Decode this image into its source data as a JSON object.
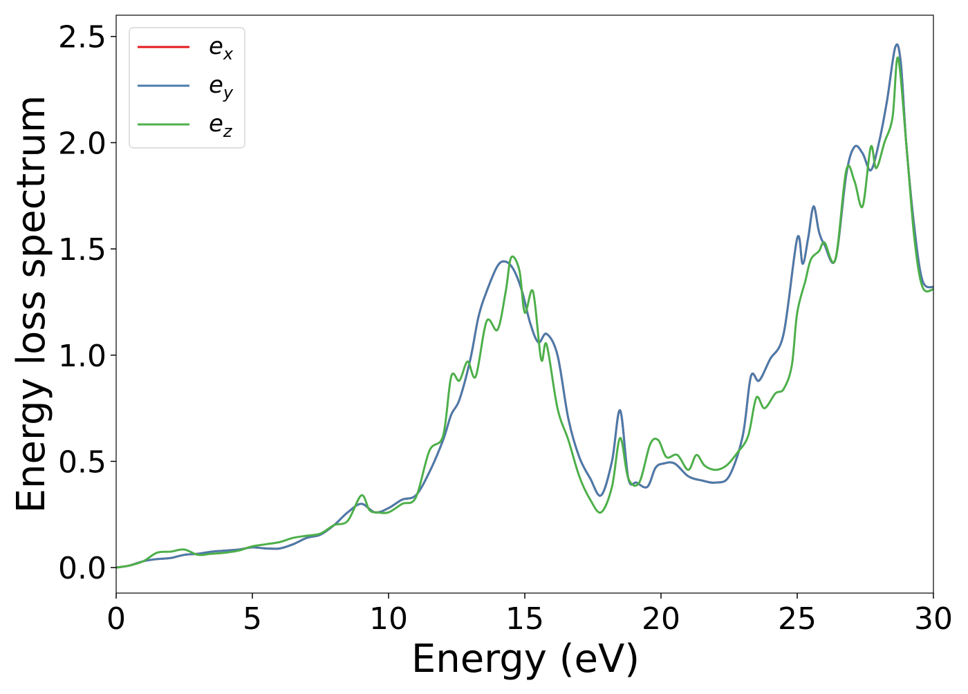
{
  "chart_data": {
    "type": "line",
    "title": "",
    "xlabel": "Energy (eV)",
    "ylabel": "Energy loss spectrum",
    "xlim": [
      0,
      30
    ],
    "ylim": [
      -0.12,
      2.6
    ],
    "xticks": [
      0,
      5,
      10,
      15,
      20,
      25,
      30
    ],
    "xtick_labels": [
      "0",
      "5",
      "10",
      "15",
      "20",
      "25",
      "30"
    ],
    "yticks": [
      0.0,
      0.5,
      1.0,
      1.5,
      2.0,
      2.5
    ],
    "ytick_labels": [
      "0.0",
      "0.5",
      "1.0",
      "1.5",
      "2.0",
      "2.5"
    ],
    "grid": false,
    "legend_position": "top-left",
    "series": [
      {
        "name": "e_x",
        "legend_base": "e",
        "legend_sub": "x",
        "color": "#e41a1c",
        "x": [
          0,
          0.5,
          1,
          1.5,
          2,
          2.5,
          3,
          3.5,
          4,
          4.5,
          5,
          5.5,
          6,
          6.5,
          7,
          7.5,
          8,
          8.5,
          9,
          9.5,
          10,
          10.5,
          11,
          11.5,
          12,
          12.3,
          12.6,
          13,
          13.3,
          13.6,
          14,
          14.3,
          14.6,
          14.9,
          15.2,
          15.5,
          15.8,
          16.2,
          16.6,
          17,
          17.4,
          17.8,
          18.2,
          18.5,
          18.8,
          19.1,
          19.5,
          19.8,
          20.1,
          20.5,
          21,
          21.5,
          22,
          22.5,
          23,
          23.3,
          23.6,
          24,
          24.5,
          25,
          25.2,
          25.4,
          25.6,
          25.8,
          26,
          26.4,
          26.8,
          27.1,
          27.4,
          27.7,
          28,
          28.3,
          28.6,
          28.8,
          29,
          29.3,
          29.6,
          30
        ],
        "y": [
          0,
          0.01,
          0.03,
          0.04,
          0.045,
          0.06,
          0.065,
          0.075,
          0.08,
          0.085,
          0.095,
          0.09,
          0.09,
          0.11,
          0.14,
          0.155,
          0.2,
          0.26,
          0.3,
          0.26,
          0.28,
          0.32,
          0.34,
          0.45,
          0.6,
          0.72,
          0.79,
          0.98,
          1.18,
          1.3,
          1.42,
          1.44,
          1.4,
          1.3,
          1.15,
          1.06,
          1.1,
          1.0,
          0.7,
          0.52,
          0.42,
          0.34,
          0.5,
          0.74,
          0.42,
          0.4,
          0.38,
          0.47,
          0.49,
          0.49,
          0.43,
          0.41,
          0.4,
          0.43,
          0.62,
          0.9,
          0.88,
          0.98,
          1.1,
          1.55,
          1.43,
          1.55,
          1.7,
          1.58,
          1.52,
          1.45,
          1.85,
          1.98,
          1.95,
          1.87,
          2.0,
          2.2,
          2.45,
          2.38,
          2.0,
          1.6,
          1.35,
          1.32
        ]
      },
      {
        "name": "e_y",
        "legend_base": "e",
        "legend_sub": "y",
        "color": "#4a7bab",
        "x": [
          0,
          0.5,
          1,
          1.5,
          2,
          2.5,
          3,
          3.5,
          4,
          4.5,
          5,
          5.5,
          6,
          6.5,
          7,
          7.5,
          8,
          8.5,
          9,
          9.5,
          10,
          10.5,
          11,
          11.5,
          12,
          12.3,
          12.6,
          13,
          13.3,
          13.6,
          14,
          14.3,
          14.6,
          14.9,
          15.2,
          15.5,
          15.8,
          16.2,
          16.6,
          17,
          17.4,
          17.8,
          18.2,
          18.5,
          18.8,
          19.1,
          19.5,
          19.8,
          20.1,
          20.5,
          21,
          21.5,
          22,
          22.5,
          23,
          23.3,
          23.6,
          24,
          24.5,
          25,
          25.2,
          25.4,
          25.6,
          25.8,
          26,
          26.4,
          26.8,
          27.1,
          27.4,
          27.7,
          28,
          28.3,
          28.6,
          28.8,
          29,
          29.3,
          29.6,
          30
        ],
        "y": [
          0,
          0.01,
          0.03,
          0.04,
          0.045,
          0.06,
          0.065,
          0.075,
          0.08,
          0.085,
          0.095,
          0.09,
          0.09,
          0.11,
          0.14,
          0.155,
          0.2,
          0.26,
          0.3,
          0.26,
          0.28,
          0.32,
          0.34,
          0.45,
          0.6,
          0.72,
          0.79,
          0.98,
          1.18,
          1.3,
          1.42,
          1.44,
          1.4,
          1.3,
          1.15,
          1.06,
          1.1,
          1.0,
          0.7,
          0.52,
          0.42,
          0.34,
          0.5,
          0.74,
          0.42,
          0.4,
          0.38,
          0.47,
          0.49,
          0.49,
          0.43,
          0.41,
          0.4,
          0.43,
          0.62,
          0.9,
          0.88,
          0.98,
          1.1,
          1.55,
          1.43,
          1.55,
          1.7,
          1.58,
          1.52,
          1.45,
          1.85,
          1.98,
          1.95,
          1.87,
          2.0,
          2.2,
          2.45,
          2.38,
          2.0,
          1.6,
          1.35,
          1.32
        ]
      },
      {
        "name": "e_z",
        "legend_base": "e",
        "legend_sub": "z",
        "color": "#4daf4a",
        "x": [
          0,
          0.5,
          1,
          1.5,
          2,
          2.5,
          3,
          3.5,
          4,
          4.5,
          5,
          5.5,
          6,
          6.5,
          7,
          7.5,
          8,
          8.5,
          9,
          9.3,
          9.6,
          10,
          10.5,
          11,
          11.5,
          12,
          12.3,
          12.6,
          12.9,
          13.2,
          13.6,
          14,
          14.3,
          14.5,
          14.8,
          15,
          15.3,
          15.6,
          15.8,
          16.2,
          16.6,
          17,
          17.4,
          17.8,
          18.2,
          18.5,
          18.8,
          19.2,
          19.6,
          19.9,
          20.2,
          20.6,
          21,
          21.3,
          21.6,
          22,
          22.4,
          22.8,
          23.2,
          23.5,
          23.8,
          24.2,
          24.5,
          24.8,
          25,
          25.3,
          25.5,
          25.8,
          26,
          26.4,
          26.8,
          27.1,
          27.4,
          27.7,
          27.9,
          28.2,
          28.5,
          28.7,
          29,
          29.3,
          29.6,
          30
        ],
        "y": [
          0,
          0.01,
          0.03,
          0.07,
          0.075,
          0.085,
          0.06,
          0.065,
          0.07,
          0.08,
          0.1,
          0.11,
          0.12,
          0.14,
          0.15,
          0.16,
          0.2,
          0.22,
          0.34,
          0.27,
          0.26,
          0.26,
          0.3,
          0.33,
          0.55,
          0.62,
          0.9,
          0.88,
          0.97,
          0.9,
          1.16,
          1.12,
          1.3,
          1.46,
          1.4,
          1.2,
          1.3,
          0.98,
          1.05,
          0.75,
          0.6,
          0.43,
          0.32,
          0.26,
          0.38,
          0.61,
          0.42,
          0.4,
          0.58,
          0.6,
          0.52,
          0.53,
          0.46,
          0.53,
          0.48,
          0.46,
          0.48,
          0.54,
          0.62,
          0.8,
          0.75,
          0.82,
          0.84,
          0.95,
          1.2,
          1.35,
          1.45,
          1.49,
          1.53,
          1.45,
          1.87,
          1.82,
          1.7,
          1.98,
          1.88,
          2.0,
          2.12,
          2.4,
          2.0,
          1.55,
          1.32,
          1.31
        ]
      }
    ]
  }
}
